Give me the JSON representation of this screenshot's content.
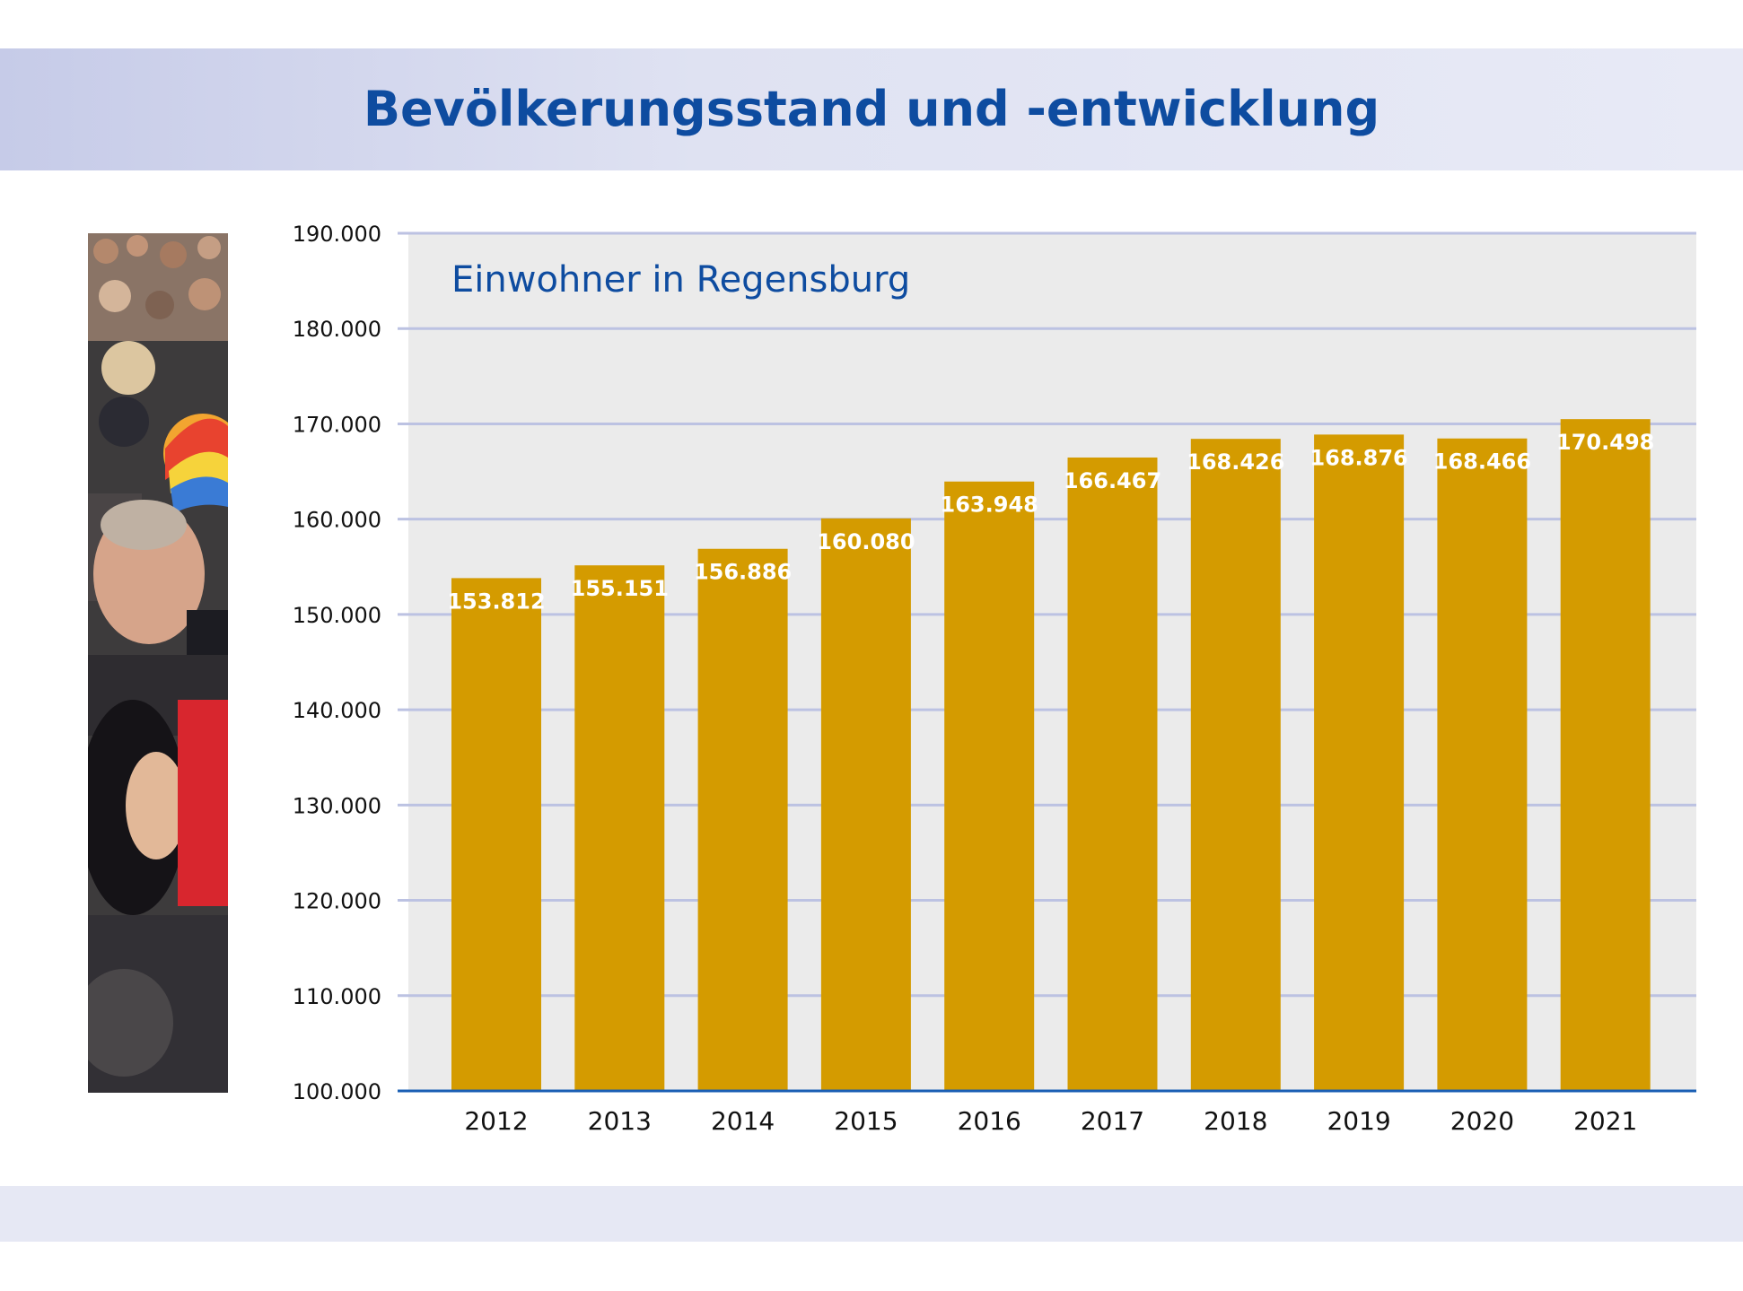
{
  "page": {
    "title": "Bevölkerungsstand und -entwicklung"
  },
  "colors": {
    "title": "#0e4ca0",
    "bar": "#d49b00",
    "plot_background": "#ebebeb",
    "gridline": "#bcc2e2",
    "axis_line": "#1a5fb4",
    "bar_label": "#ffffff",
    "header_band": "#d6daef",
    "footer_band": "#e6e8f4"
  },
  "photo": {
    "icon": "crowd-photo-icon"
  },
  "chart_data": {
    "type": "bar",
    "title": "Einwohner in Regensburg",
    "xlabel": "",
    "ylabel": "",
    "categories": [
      "2012",
      "2013",
      "2014",
      "2015",
      "2016",
      "2017",
      "2018",
      "2019",
      "2020",
      "2021"
    ],
    "values": [
      153812,
      155151,
      156886,
      160080,
      163948,
      166467,
      168426,
      168876,
      168466,
      170498
    ],
    "value_labels": [
      "153.812",
      "155.151",
      "156.886",
      "160.080",
      "163.948",
      "166.467",
      "168.426",
      "168.876",
      "168.466",
      "170.498"
    ],
    "ylim": [
      100000,
      190000
    ],
    "yticks": [
      100000,
      110000,
      120000,
      130000,
      140000,
      150000,
      160000,
      170000,
      180000,
      190000
    ],
    "ytick_labels": [
      "100.000",
      "110.000",
      "120.000",
      "130.000",
      "140.000",
      "150.000",
      "160.000",
      "170.000",
      "180.000",
      "190.000"
    ],
    "grid": true,
    "legend": "none"
  }
}
